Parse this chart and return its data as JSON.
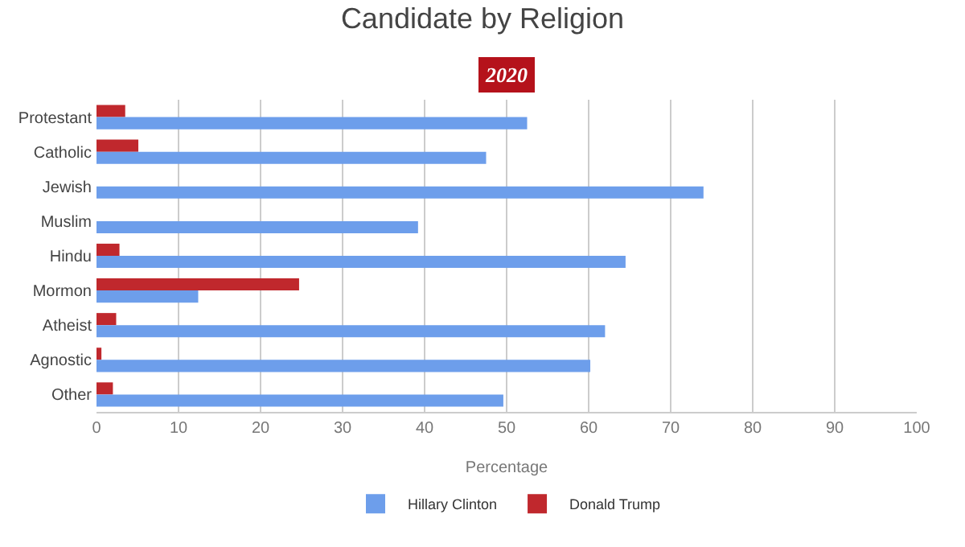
{
  "chart_data": {
    "type": "bar",
    "orientation": "horizontal",
    "title": "Candidate by Religion",
    "subtitle": "2020",
    "xlabel": "Percentage",
    "categories": [
      "Protestant",
      "Catholic",
      "Jewish",
      "Muslim",
      "Hindu",
      "Mormon",
      "Atheist",
      "Agnostic",
      "Other"
    ],
    "series": [
      {
        "name": "Hillary Clinton",
        "color": "#6d9eeb",
        "values": [
          52.5,
          47.5,
          74,
          39.2,
          64.5,
          12.4,
          62,
          60.2,
          49.6
        ]
      },
      {
        "name": "Donald Trump",
        "color": "#c0282d",
        "values": [
          3.5,
          5.1,
          null,
          null,
          2.8,
          24.7,
          2.4,
          0.6,
          2
        ]
      }
    ],
    "xlim": [
      0,
      100
    ],
    "xticks": [
      0,
      10,
      20,
      30,
      40,
      50,
      60,
      70,
      80,
      90,
      100
    ],
    "grid": "x",
    "legend": "bottom"
  }
}
